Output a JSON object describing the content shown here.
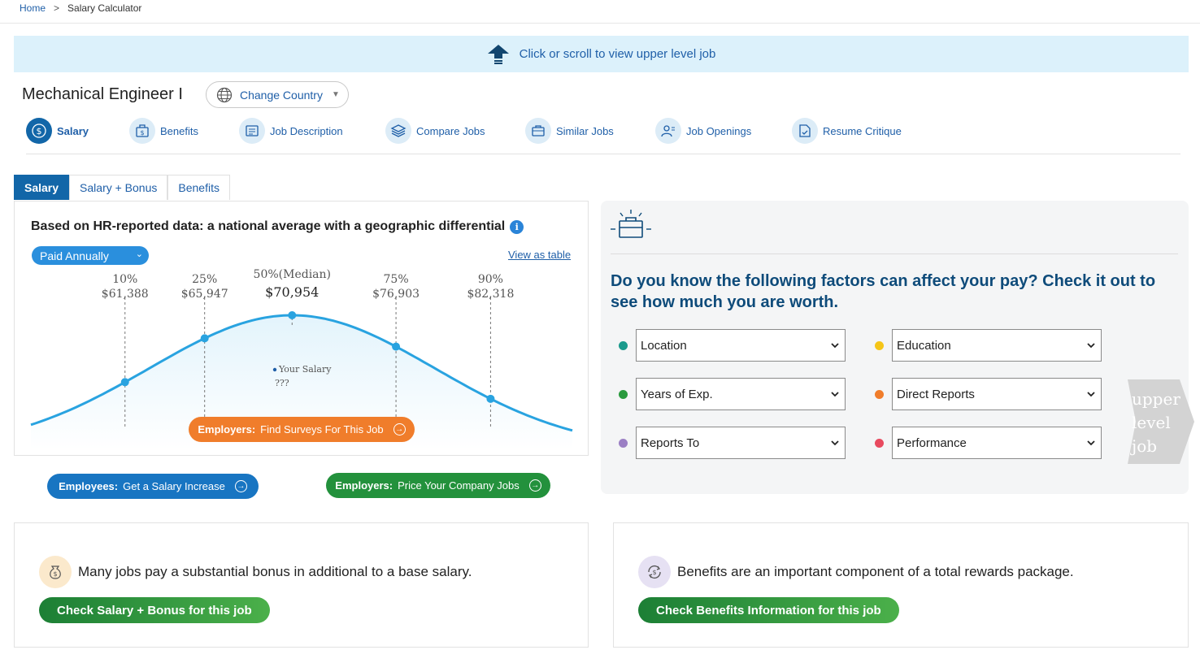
{
  "breadcrumb": {
    "home": "Home",
    "separator": ">",
    "current": "Salary Calculator"
  },
  "banner": {
    "text": "Click or scroll to view upper level job",
    "icon": "up-arrow-icon"
  },
  "job": {
    "title": "Mechanical Engineer I"
  },
  "country_button": {
    "label": "Change Country",
    "icon": "globe-icon",
    "caret": "▼"
  },
  "nav": {
    "items": [
      {
        "label": "Salary",
        "icon": "dollar-circle-icon",
        "active": true
      },
      {
        "label": "Benefits",
        "icon": "benefits-icon"
      },
      {
        "label": "Job Description",
        "icon": "document-icon"
      },
      {
        "label": "Compare Jobs",
        "icon": "layers-icon"
      },
      {
        "label": "Similar Jobs",
        "icon": "briefcase-icon"
      },
      {
        "label": "Job Openings",
        "icon": "people-icon"
      },
      {
        "label": "Resume Critique",
        "icon": "resume-icon"
      }
    ]
  },
  "tabs": [
    {
      "label": "Salary",
      "active": true
    },
    {
      "label": "Salary + Bonus"
    },
    {
      "label": "Benefits"
    }
  ],
  "chart_card": {
    "heading": "Based on HR-reported data: a national average with a geographic differential",
    "info": "i",
    "pay_period": "Paid Annually",
    "pay_chevron": "⌄",
    "view_as_table": "View as table",
    "your_salary_label": "Your Salary",
    "your_salary_value": "???"
  },
  "chart_data": {
    "type": "area",
    "series": [
      {
        "values": [
          61388,
          65947,
          70954,
          76903,
          82318
        ]
      }
    ],
    "percentiles": [
      {
        "label": "10%",
        "value": "$61,388",
        "p": 10,
        "salary": 61388
      },
      {
        "label": "25%",
        "value": "$65,947",
        "p": 25,
        "salary": 65947
      },
      {
        "label": "50%(Median)",
        "value": "$70,954",
        "p": 50,
        "salary": 70954
      },
      {
        "label": "75%",
        "value": "$76,903",
        "p": 75,
        "salary": 76903
      },
      {
        "label": "90%",
        "value": "$82,318",
        "p": 90,
        "salary": 82318
      }
    ],
    "curve_color": "#29a3e0",
    "fill_color": "#e3f4fc"
  },
  "buttons": {
    "employers_surveys_bold": "Employers:",
    "employers_surveys_text": "Find Surveys For This Job",
    "employees_bold": "Employees:",
    "employees_text": "Get a Salary Increase",
    "employers_price_bold": "Employers:",
    "employers_price_text": "Price Your Company Jobs",
    "arrow": "→"
  },
  "factors": {
    "heading": "Do you know the following factors can affect your pay? Check it out to see how much you are worth.",
    "icon": "briefcase-sparkle-icon",
    "chevron": "⌄",
    "items": [
      {
        "label": "Location",
        "color": "#1a9a8c"
      },
      {
        "label": "Education",
        "color": "#f5c518"
      },
      {
        "label": "Years of Exp.",
        "color": "#2a9a3e"
      },
      {
        "label": "Direct Reports",
        "color": "#f07d2b"
      },
      {
        "label": "Reports To",
        "color": "#9b7fc4"
      },
      {
        "label": "Performance",
        "color": "#e84a5f"
      }
    ]
  },
  "upper_level_job": {
    "line1": "upper",
    "line2": "level",
    "line3": "job"
  },
  "bonus_card": {
    "text": "Many jobs pay a substantial bonus in additional to a base salary.",
    "button": "Check Salary + Bonus for this job",
    "icon": "money-bag-icon"
  },
  "benefits_card": {
    "text": "Benefits are an important component of a total rewards package.",
    "button": "Check Benefits Information for this job",
    "icon": "dollar-cycle-icon"
  }
}
